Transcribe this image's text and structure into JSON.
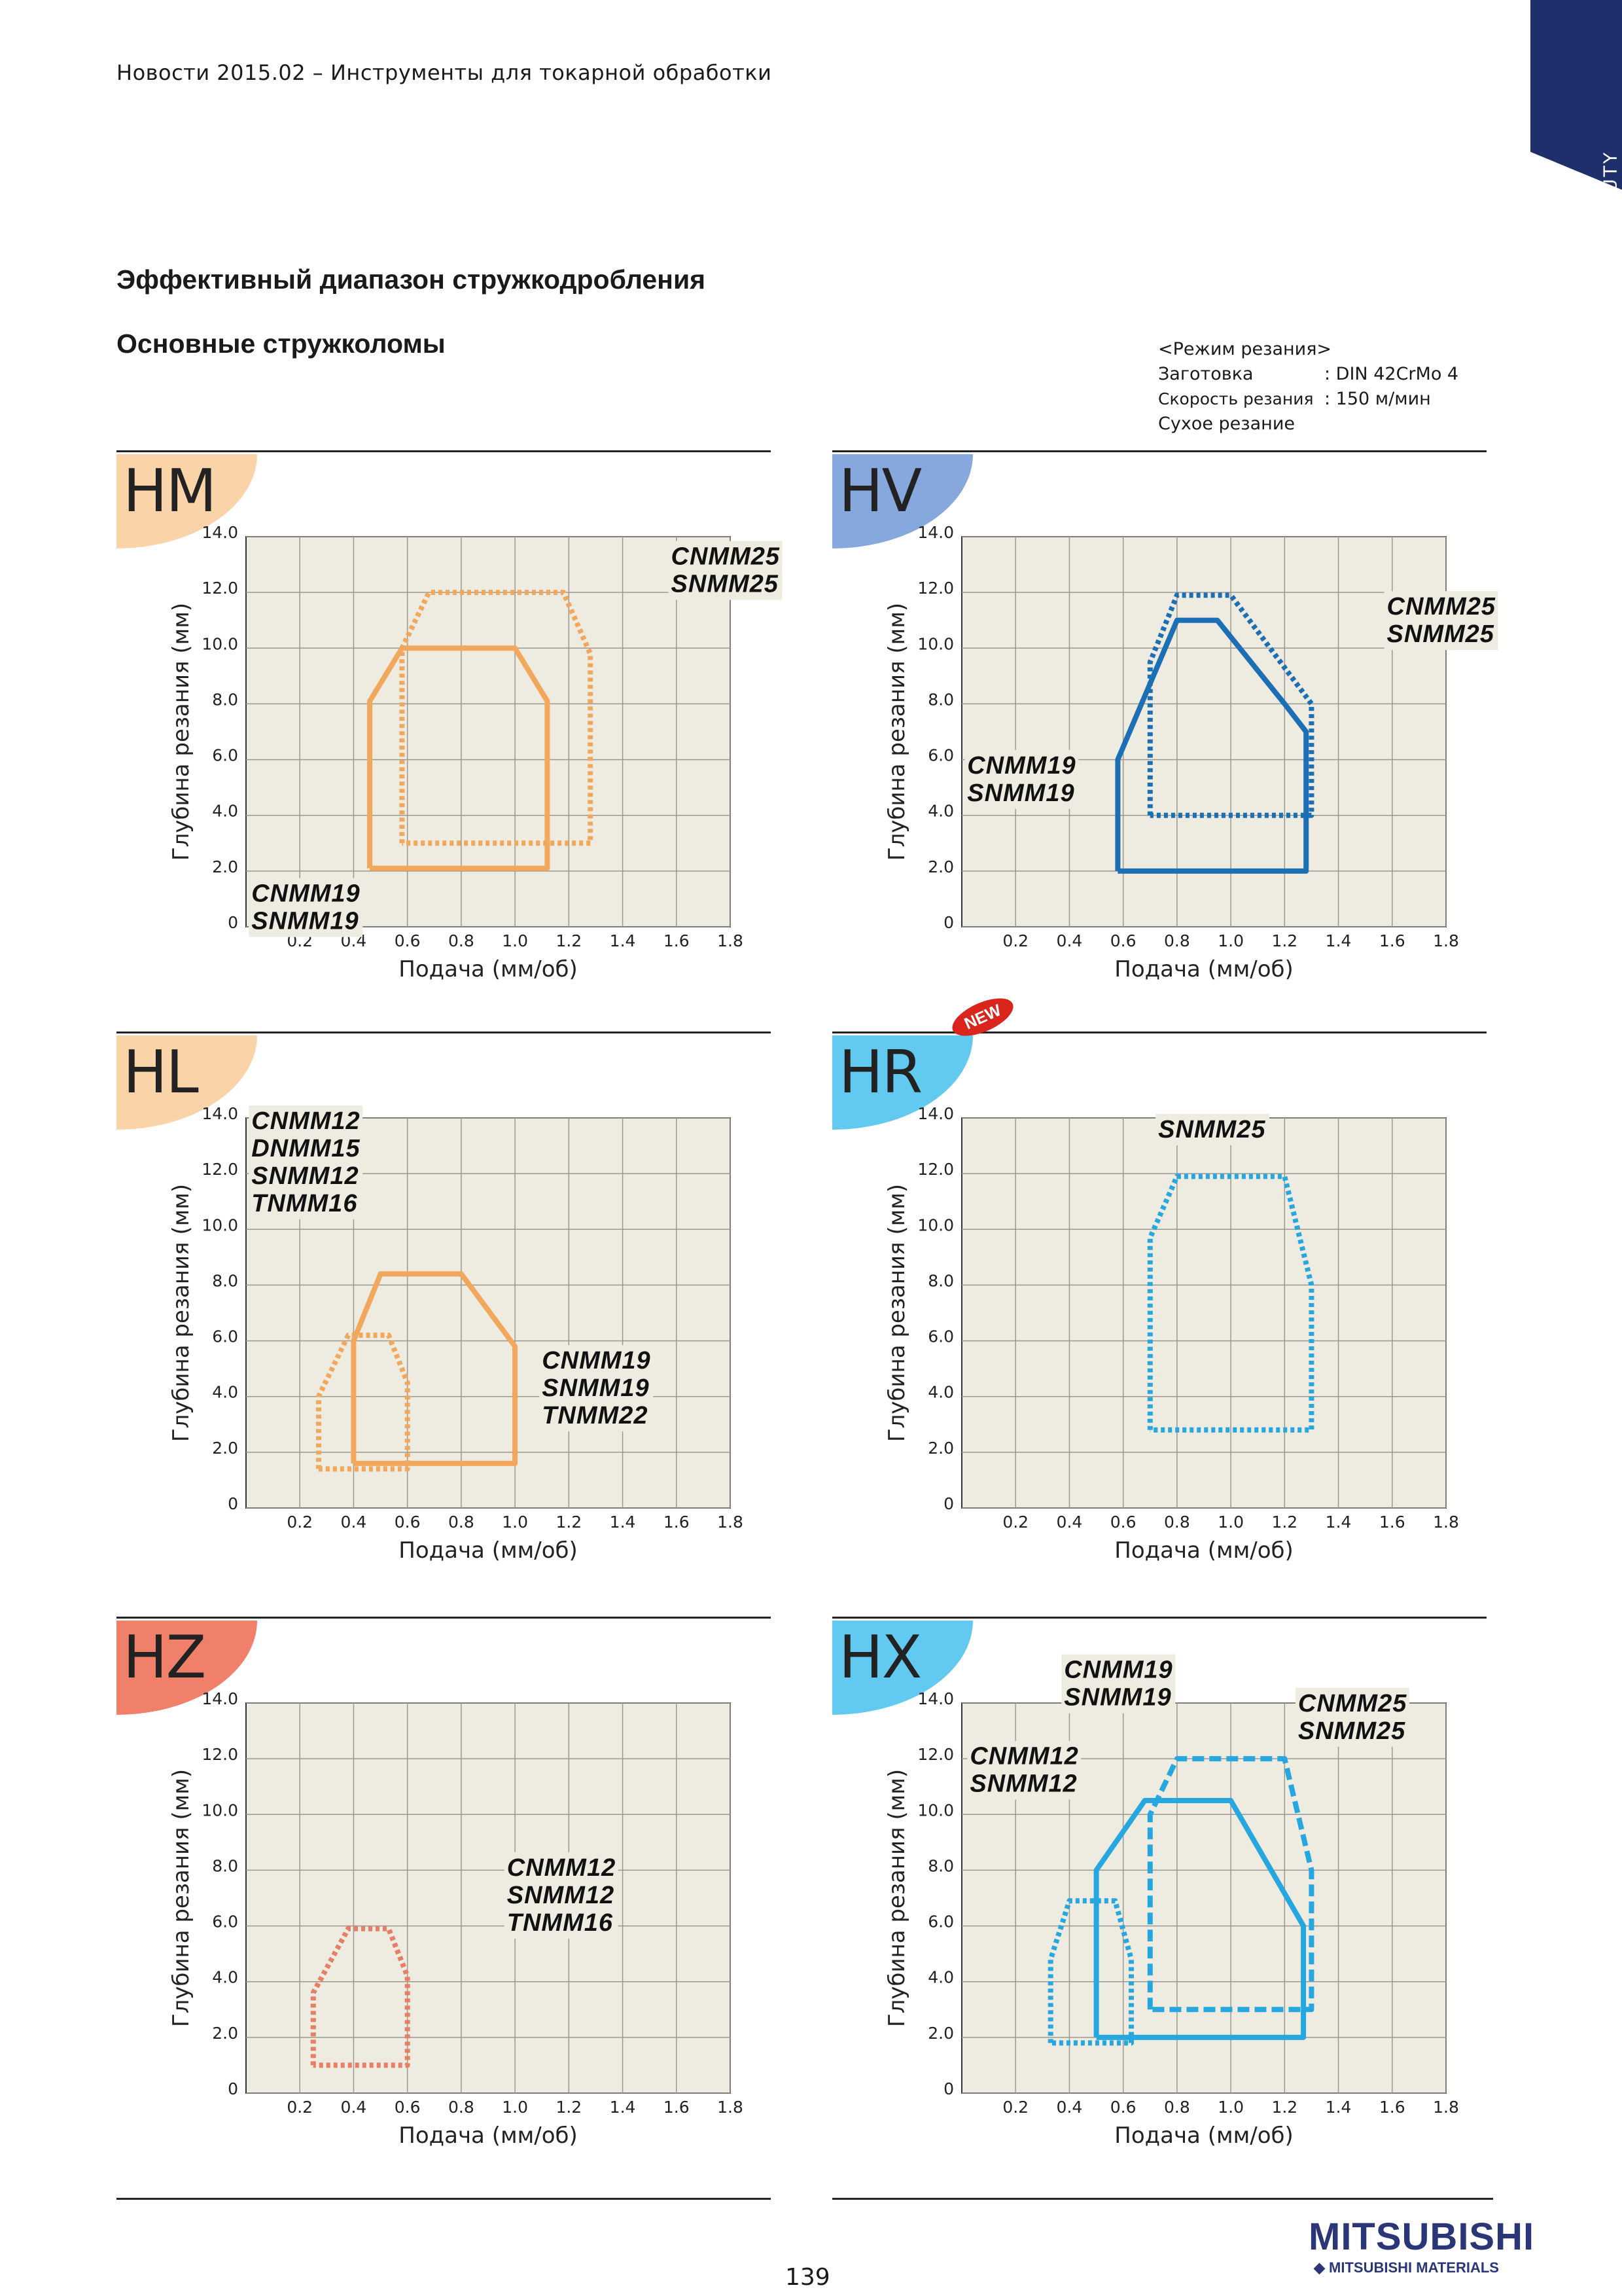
{
  "header": {
    "text": "Новости 2015.02 – Инструменты для токарной обработки"
  },
  "corner_tab": {
    "label": "HEAVY DUTY",
    "color": "#1e2f6b"
  },
  "title": "Эффективный диапазон стружкодробления",
  "subtitle": "Основные стружколомы",
  "conditions": {
    "heading": "<Режим резания>",
    "rows": [
      {
        "label": "Заготовка",
        "value": ": DIN 42CrMo 4"
      },
      {
        "label": "Скорость резания",
        "value": ": 150 м/мин"
      },
      {
        "label": "Сухое резание",
        "value": ""
      }
    ]
  },
  "new_badge": "NEW",
  "page_number": "139",
  "logo": {
    "main": "MITSUBISHI",
    "sub": "MITSUBISHI MATERIALS"
  },
  "chart_data": [
    {
      "type": "area",
      "code": "HM",
      "badge_color": "#fbd3a8",
      "line_color": "#f2a85c",
      "xlabel": "Подача (мм/об)",
      "ylabel": "Глубина резания (мм)",
      "xlim": [
        0,
        1.8
      ],
      "ylim": [
        0,
        14.0
      ],
      "x_ticks": [
        "0.2",
        "0.4",
        "0.6",
        "0.8",
        "1.0",
        "1.2",
        "1.4",
        "1.6",
        "1.8"
      ],
      "y_ticks": [
        "0",
        "2.0",
        "4.0",
        "6.0",
        "8.0",
        "10.0",
        "12.0",
        "14.0"
      ],
      "series": [
        {
          "name": "CNMM19 / SNMM19",
          "style": "solid",
          "points": [
            [
              0.46,
              2.1
            ],
            [
              0.46,
              8.1
            ],
            [
              0.58,
              10.0
            ],
            [
              1.0,
              10.0
            ],
            [
              1.12,
              8.1
            ],
            [
              1.12,
              2.1
            ],
            [
              0.46,
              2.1
            ]
          ]
        },
        {
          "name": "CNMM25 / SNMM25",
          "style": "dotted",
          "points": [
            [
              0.58,
              3.0
            ],
            [
              0.58,
              10.0
            ],
            [
              0.68,
              12.0
            ],
            [
              1.18,
              12.0
            ],
            [
              1.28,
              9.8
            ],
            [
              1.28,
              3.0
            ],
            [
              0.58,
              3.0
            ]
          ]
        }
      ],
      "labels": [
        {
          "lines": [
            "CNMM25",
            "SNMM25"
          ],
          "at": [
            1.58,
            13.0
          ]
        },
        {
          "lines": [
            "CNMM19",
            "SNMM19"
          ],
          "at": [
            0.02,
            0.9
          ]
        }
      ]
    },
    {
      "type": "area",
      "code": "HV",
      "badge_color": "#86a8dc",
      "line_color": "#1d6fb5",
      "xlabel": "Подача (мм/об)",
      "ylabel": "Глубина резания (мм)",
      "xlim": [
        0,
        1.8
      ],
      "ylim": [
        0,
        14.0
      ],
      "x_ticks": [
        "0.2",
        "0.4",
        "0.6",
        "0.8",
        "1.0",
        "1.2",
        "1.4",
        "1.6",
        "1.8"
      ],
      "y_ticks": [
        "0",
        "2.0",
        "4.0",
        "6.0",
        "8.0",
        "10.0",
        "12.0",
        "14.0"
      ],
      "series": [
        {
          "name": "CNMM19 / SNMM19",
          "style": "solid",
          "points": [
            [
              0.58,
              2.0
            ],
            [
              0.58,
              6.0
            ],
            [
              0.8,
              11.0
            ],
            [
              0.95,
              11.0
            ],
            [
              1.2,
              8.0
            ],
            [
              1.28,
              7.0
            ],
            [
              1.28,
              2.0
            ],
            [
              0.58,
              2.0
            ]
          ]
        },
        {
          "name": "CNMM25 / SNMM25",
          "style": "dotted",
          "points": [
            [
              0.7,
              4.0
            ],
            [
              0.7,
              9.5
            ],
            [
              0.8,
              11.9
            ],
            [
              1.0,
              11.9
            ],
            [
              1.3,
              8.0
            ],
            [
              1.3,
              4.0
            ],
            [
              0.7,
              4.0
            ]
          ]
        }
      ],
      "labels": [
        {
          "lines": [
            "CNMM25",
            "SNMM25"
          ],
          "at": [
            1.58,
            11.2
          ]
        },
        {
          "lines": [
            "CNMM19",
            "SNMM19"
          ],
          "at": [
            0.02,
            5.5
          ]
        }
      ]
    },
    {
      "type": "area",
      "code": "HL",
      "badge_color": "#fbd3a8",
      "line_color": "#f2a85c",
      "xlabel": "Подача (мм/об)",
      "ylabel": "Глубина резания (мм)",
      "xlim": [
        0,
        1.8
      ],
      "ylim": [
        0,
        14.0
      ],
      "x_ticks": [
        "0.2",
        "0.4",
        "0.6",
        "0.8",
        "1.0",
        "1.2",
        "1.4",
        "1.6",
        "1.8"
      ],
      "y_ticks": [
        "0",
        "2.0",
        "4.0",
        "6.0",
        "8.0",
        "10.0",
        "12.0",
        "14.0"
      ],
      "series": [
        {
          "name": "CNMM19 / SNMM19 / TNMM22",
          "style": "solid",
          "points": [
            [
              0.4,
              1.6
            ],
            [
              0.4,
              6.0
            ],
            [
              0.5,
              8.4
            ],
            [
              0.8,
              8.4
            ],
            [
              1.0,
              5.8
            ],
            [
              1.0,
              1.6
            ],
            [
              0.4,
              1.6
            ]
          ]
        },
        {
          "name": "CNMM12 / DNMM15 / SNMM12 / TNMM16",
          "style": "dotted",
          "points": [
            [
              0.27,
              1.4
            ],
            [
              0.27,
              4.0
            ],
            [
              0.38,
              6.2
            ],
            [
              0.53,
              6.2
            ],
            [
              0.6,
              4.5
            ],
            [
              0.6,
              1.4
            ],
            [
              0.27,
              1.4
            ]
          ]
        }
      ],
      "labels": [
        {
          "lines": [
            "CNMM12",
            "DNMM15",
            "SNMM12",
            "TNMM16"
          ],
          "at": [
            0.02,
            13.6
          ]
        },
        {
          "lines": [
            "CNMM19",
            "SNMM19",
            "TNMM22"
          ],
          "at": [
            1.1,
            5.0
          ]
        }
      ]
    },
    {
      "type": "area",
      "code": "HR",
      "badge_color": "#62c9f0",
      "line_color": "#27a7df",
      "xlabel": "Подача (мм/об)",
      "ylabel": "Глубина резания (мм)",
      "xlim": [
        0,
        1.8
      ],
      "ylim": [
        0,
        14.0
      ],
      "x_ticks": [
        "0.2",
        "0.4",
        "0.6",
        "0.8",
        "1.0",
        "1.2",
        "1.4",
        "1.6",
        "1.8"
      ],
      "y_ticks": [
        "0",
        "2.0",
        "4.0",
        "6.0",
        "8.0",
        "10.0",
        "12.0",
        "14.0"
      ],
      "series": [
        {
          "name": "SNMM25",
          "style": "dotted",
          "points": [
            [
              0.7,
              2.8
            ],
            [
              0.7,
              9.7
            ],
            [
              0.8,
              11.9
            ],
            [
              1.2,
              11.9
            ],
            [
              1.3,
              8.0
            ],
            [
              1.3,
              2.8
            ],
            [
              0.7,
              2.8
            ]
          ]
        }
      ],
      "labels": [
        {
          "lines": [
            "SNMM25"
          ],
          "at": [
            0.73,
            13.3
          ]
        }
      ]
    },
    {
      "type": "area",
      "code": "HZ",
      "badge_color": "#f0806a",
      "line_color": "#e67f65",
      "xlabel": "Подача (мм/об)",
      "ylabel": "Глубина резания (мм)",
      "xlim": [
        0,
        1.8
      ],
      "ylim": [
        0,
        14.0
      ],
      "x_ticks": [
        "0.2",
        "0.4",
        "0.6",
        "0.8",
        "1.0",
        "1.2",
        "1.4",
        "1.6",
        "1.8"
      ],
      "y_ticks": [
        "0",
        "2.0",
        "4.0",
        "6.0",
        "8.0",
        "10.0",
        "12.0",
        "14.0"
      ],
      "series": [
        {
          "name": "CNMM12 / SNMM12 / TNMM16",
          "style": "dotted",
          "points": [
            [
              0.25,
              1.0
            ],
            [
              0.25,
              3.6
            ],
            [
              0.38,
              5.9
            ],
            [
              0.53,
              5.9
            ],
            [
              0.6,
              4.2
            ],
            [
              0.6,
              1.0
            ],
            [
              0.25,
              1.0
            ]
          ]
        }
      ],
      "labels": [
        {
          "lines": [
            "CNMM12",
            "SNMM12",
            "TNMM16"
          ],
          "at": [
            0.97,
            7.8
          ]
        }
      ]
    },
    {
      "type": "area",
      "code": "HX",
      "badge_color": "#62c9f0",
      "line_color": "#27a7df",
      "xlabel": "Подача (мм/об)",
      "ylabel": "Глубина резания (мм)",
      "xlim": [
        0,
        1.8
      ],
      "ylim": [
        0,
        14.0
      ],
      "x_ticks": [
        "0.2",
        "0.4",
        "0.6",
        "0.8",
        "1.0",
        "1.2",
        "1.4",
        "1.6",
        "1.8"
      ],
      "y_ticks": [
        "0",
        "2.0",
        "4.0",
        "6.0",
        "8.0",
        "10.0",
        "12.0",
        "14.0"
      ],
      "series": [
        {
          "name": "CNMM19 / SNMM19",
          "style": "solid",
          "points": [
            [
              0.5,
              2.0
            ],
            [
              0.5,
              8.0
            ],
            [
              0.68,
              10.5
            ],
            [
              1.0,
              10.5
            ],
            [
              1.27,
              6.0
            ],
            [
              1.27,
              2.0
            ],
            [
              0.5,
              2.0
            ]
          ]
        },
        {
          "name": "CNMM25 / SNMM25",
          "style": "dashed",
          "points": [
            [
              0.7,
              3.0
            ],
            [
              0.7,
              10.0
            ],
            [
              0.8,
              12.0
            ],
            [
              1.2,
              12.0
            ],
            [
              1.3,
              8.0
            ],
            [
              1.3,
              3.0
            ],
            [
              0.7,
              3.0
            ]
          ]
        },
        {
          "name": "CNMM12 / SNMM12",
          "style": "dotted",
          "points": [
            [
              0.33,
              1.8
            ],
            [
              0.33,
              4.8
            ],
            [
              0.4,
              6.9
            ],
            [
              0.57,
              6.9
            ],
            [
              0.63,
              4.8
            ],
            [
              0.63,
              1.8
            ],
            [
              0.33,
              1.8
            ]
          ]
        }
      ],
      "labels": [
        {
          "lines": [
            "CNMM19",
            "SNMM19"
          ],
          "at": [
            0.38,
            14.9
          ]
        },
        {
          "lines": [
            "CNMM25",
            "SNMM25"
          ],
          "at": [
            1.25,
            13.7
          ]
        },
        {
          "lines": [
            "CNMM12",
            "SNMM12"
          ],
          "at": [
            0.03,
            11.8
          ]
        }
      ]
    }
  ]
}
